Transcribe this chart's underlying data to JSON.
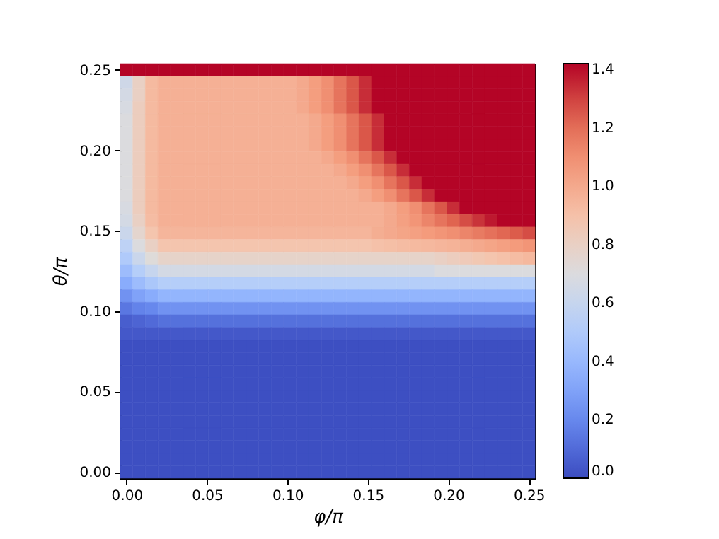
{
  "chart_data": {
    "type": "heatmap",
    "xlabel": "φ/π",
    "ylabel": "θ/π",
    "x": [
      0,
      0.0078,
      0.0156,
      0.0234,
      0.0312,
      0.0391,
      0.0469,
      0.0547,
      0.0625,
      0.0703,
      0.0781,
      0.0859,
      0.0938,
      0.1016,
      0.1094,
      0.1172,
      0.125,
      0.1328,
      0.1406,
      0.1484,
      0.1562,
      0.1641,
      0.1719,
      0.1797,
      0.1875,
      0.1953,
      0.2031,
      0.2109,
      0.2188,
      0.2266,
      0.2344,
      0.2422,
      0.25
    ],
    "y": [
      0.25,
      0.2422,
      0.2344,
      0.2266,
      0.2188,
      0.2109,
      0.2031,
      0.1953,
      0.1875,
      0.1797,
      0.1719,
      0.1641,
      0.1562,
      0.1484,
      0.1406,
      0.1328,
      0.125,
      0.1172,
      0.1094,
      0.1016,
      0.0938,
      0.0859,
      0.0781,
      0.0703,
      0.0625,
      0.0547,
      0.0469,
      0.0391,
      0.0312,
      0.0234,
      0.0156,
      0.0078,
      0
    ],
    "xlim": [
      -0.0039,
      0.2539
    ],
    "ylim": [
      -0.0039,
      0.2539
    ],
    "xticks": [
      {
        "value": 0,
        "label": "0.00"
      },
      0.05,
      {
        "value": 0.1,
        "label": "0.10"
      },
      0.15,
      {
        "value": 0.2,
        "label": "0.20"
      },
      0.25
    ],
    "yticks": [
      {
        "value": 0,
        "label": "0.00"
      },
      0.05,
      {
        "value": 0.1,
        "label": "0.10"
      },
      0.15,
      {
        "value": 0.2,
        "label": "0.20"
      },
      0.25
    ],
    "clim": [
      0,
      1.42
    ],
    "cticks": [
      {
        "value": 0,
        "label": "0.0"
      },
      0.2,
      0.4,
      0.6,
      0.8,
      {
        "value": 1,
        "label": "1.0"
      },
      1.2,
      1.4
    ],
    "cells": [
      [
        1.42,
        1.42,
        1.42,
        1.42,
        1.42,
        1.42,
        1.42,
        1.42,
        1.42,
        1.42,
        1.42,
        1.42,
        1.42,
        1.42,
        1.42,
        1.42,
        1.42,
        1.42,
        1.42,
        1.42,
        1.42,
        1.42,
        1.42,
        1.42,
        1.42,
        1.42,
        1.42,
        1.42,
        1.42,
        1.42,
        1.42,
        1.42,
        1.42
      ],
      [
        0.64,
        0.8,
        0.93,
        0.97,
        0.97,
        0.97,
        0.97,
        0.97,
        0.97,
        0.97,
        0.97,
        0.97,
        0.97,
        0.97,
        1.0,
        1.05,
        1.1,
        1.18,
        1.26,
        1.34,
        1.42,
        1.42,
        1.42,
        1.42,
        1.42,
        1.42,
        1.42,
        1.42,
        1.42,
        1.42,
        1.42,
        1.42,
        1.42
      ],
      [
        0.66,
        0.8,
        0.93,
        0.97,
        0.97,
        0.97,
        0.97,
        0.97,
        0.97,
        0.97,
        0.97,
        0.97,
        0.97,
        0.97,
        1.0,
        1.05,
        1.1,
        1.18,
        1.26,
        1.34,
        1.42,
        1.42,
        1.42,
        1.42,
        1.42,
        1.42,
        1.42,
        1.42,
        1.42,
        1.42,
        1.42,
        1.42,
        1.42
      ],
      [
        0.68,
        0.82,
        0.93,
        0.97,
        0.97,
        0.97,
        0.97,
        0.97,
        0.97,
        0.97,
        0.97,
        0.97,
        0.97,
        0.97,
        1.0,
        1.05,
        1.1,
        1.18,
        1.26,
        1.34,
        1.42,
        1.42,
        1.42,
        1.42,
        1.42,
        1.42,
        1.42,
        1.42,
        1.42,
        1.42,
        1.42,
        1.42,
        1.42
      ],
      [
        0.7,
        0.82,
        0.93,
        0.97,
        0.97,
        0.97,
        0.97,
        0.97,
        0.97,
        0.97,
        0.97,
        0.97,
        0.97,
        0.97,
        0.97,
        1.0,
        1.05,
        1.1,
        1.18,
        1.26,
        1.34,
        1.42,
        1.42,
        1.42,
        1.42,
        1.42,
        1.42,
        1.42,
        1.42,
        1.42,
        1.42,
        1.42,
        1.42
      ],
      [
        0.7,
        0.82,
        0.93,
        0.97,
        0.97,
        0.97,
        0.97,
        0.97,
        0.97,
        0.97,
        0.97,
        0.97,
        0.97,
        0.97,
        0.97,
        1.0,
        1.05,
        1.1,
        1.18,
        1.26,
        1.34,
        1.42,
        1.42,
        1.42,
        1.42,
        1.42,
        1.42,
        1.42,
        1.42,
        1.42,
        1.42,
        1.42,
        1.42
      ],
      [
        0.7,
        0.82,
        0.93,
        0.97,
        0.97,
        0.97,
        0.97,
        0.97,
        0.97,
        0.97,
        0.97,
        0.97,
        0.97,
        0.97,
        0.97,
        1.0,
        1.05,
        1.1,
        1.18,
        1.26,
        1.34,
        1.42,
        1.42,
        1.42,
        1.42,
        1.42,
        1.42,
        1.42,
        1.42,
        1.42,
        1.42,
        1.42,
        1.42
      ],
      [
        0.7,
        0.82,
        0.93,
        0.97,
        0.97,
        0.97,
        0.97,
        0.97,
        0.97,
        0.97,
        0.97,
        0.97,
        0.97,
        0.97,
        0.97,
        0.97,
        1.0,
        1.05,
        1.1,
        1.18,
        1.26,
        1.34,
        1.42,
        1.42,
        1.42,
        1.42,
        1.42,
        1.42,
        1.42,
        1.42,
        1.42,
        1.42,
        1.42
      ],
      [
        0.7,
        0.82,
        0.93,
        0.97,
        0.97,
        0.97,
        0.97,
        0.97,
        0.97,
        0.97,
        0.97,
        0.97,
        0.97,
        0.97,
        0.97,
        0.97,
        0.97,
        1.0,
        1.05,
        1.1,
        1.18,
        1.26,
        1.34,
        1.42,
        1.42,
        1.42,
        1.42,
        1.42,
        1.42,
        1.42,
        1.42,
        1.42,
        1.42
      ],
      [
        0.7,
        0.82,
        0.93,
        0.97,
        0.97,
        0.97,
        0.97,
        0.97,
        0.97,
        0.97,
        0.97,
        0.97,
        0.97,
        0.97,
        0.97,
        0.97,
        0.97,
        0.97,
        1.0,
        1.05,
        1.1,
        1.18,
        1.26,
        1.34,
        1.42,
        1.42,
        1.42,
        1.42,
        1.42,
        1.42,
        1.42,
        1.42,
        1.42
      ],
      [
        0.7,
        0.82,
        0.93,
        0.97,
        0.97,
        0.97,
        0.97,
        0.97,
        0.97,
        0.97,
        0.97,
        0.97,
        0.97,
        0.97,
        0.97,
        0.97,
        0.97,
        0.97,
        0.97,
        1.0,
        1.05,
        1.1,
        1.18,
        1.26,
        1.34,
        1.42,
        1.42,
        1.42,
        1.42,
        1.42,
        1.42,
        1.42,
        1.42
      ],
      [
        0.68,
        0.82,
        0.93,
        0.97,
        0.97,
        0.97,
        0.97,
        0.97,
        0.97,
        0.97,
        0.97,
        0.97,
        0.97,
        0.97,
        0.97,
        0.97,
        0.97,
        0.97,
        0.97,
        0.97,
        0.97,
        1.0,
        1.05,
        1.1,
        1.18,
        1.26,
        1.34,
        1.42,
        1.42,
        1.42,
        1.42,
        1.42,
        1.42
      ],
      [
        0.66,
        0.8,
        0.92,
        0.97,
        0.97,
        0.97,
        0.97,
        0.97,
        0.97,
        0.97,
        0.97,
        0.97,
        0.97,
        0.97,
        0.97,
        0.97,
        0.97,
        0.97,
        0.97,
        0.97,
        0.97,
        1.0,
        1.04,
        1.08,
        1.13,
        1.18,
        1.23,
        1.28,
        1.33,
        1.38,
        1.42,
        1.42,
        1.42
      ],
      [
        0.62,
        0.76,
        0.88,
        0.95,
        0.95,
        0.95,
        0.95,
        0.95,
        0.95,
        0.95,
        0.95,
        0.95,
        0.95,
        0.95,
        0.95,
        0.95,
        0.95,
        0.95,
        0.95,
        0.95,
        0.98,
        1.0,
        1.02,
        1.04,
        1.06,
        1.08,
        1.1,
        1.13,
        1.16,
        1.19,
        1.22,
        1.25,
        1.28
      ],
      [
        0.56,
        0.7,
        0.8,
        0.88,
        0.88,
        0.88,
        0.88,
        0.88,
        0.88,
        0.88,
        0.88,
        0.88,
        0.88,
        0.88,
        0.88,
        0.88,
        0.88,
        0.88,
        0.88,
        0.88,
        0.9,
        0.91,
        0.92,
        0.93,
        0.94,
        0.95,
        0.96,
        0.98,
        1.0,
        1.02,
        1.04,
        1.06,
        1.08
      ],
      [
        0.5,
        0.62,
        0.72,
        0.78,
        0.78,
        0.78,
        0.78,
        0.78,
        0.78,
        0.78,
        0.78,
        0.78,
        0.78,
        0.78,
        0.78,
        0.78,
        0.78,
        0.78,
        0.78,
        0.78,
        0.78,
        0.78,
        0.78,
        0.78,
        0.78,
        0.8,
        0.82,
        0.84,
        0.86,
        0.88,
        0.9,
        0.92,
        0.94
      ],
      [
        0.42,
        0.52,
        0.6,
        0.66,
        0.66,
        0.66,
        0.66,
        0.66,
        0.66,
        0.66,
        0.66,
        0.66,
        0.66,
        0.66,
        0.66,
        0.66,
        0.66,
        0.66,
        0.66,
        0.66,
        0.66,
        0.66,
        0.66,
        0.66,
        0.66,
        0.7,
        0.7,
        0.7,
        0.7,
        0.7,
        0.7,
        0.7,
        0.7
      ],
      [
        0.34,
        0.42,
        0.48,
        0.52,
        0.52,
        0.52,
        0.52,
        0.52,
        0.52,
        0.52,
        0.52,
        0.52,
        0.52,
        0.52,
        0.52,
        0.52,
        0.52,
        0.52,
        0.52,
        0.52,
        0.52,
        0.52,
        0.52,
        0.52,
        0.52,
        0.52,
        0.52,
        0.52,
        0.52,
        0.52,
        0.52,
        0.52,
        0.52
      ],
      [
        0.24,
        0.3,
        0.34,
        0.38,
        0.38,
        0.38,
        0.38,
        0.38,
        0.38,
        0.38,
        0.38,
        0.38,
        0.38,
        0.38,
        0.38,
        0.38,
        0.38,
        0.38,
        0.38,
        0.38,
        0.38,
        0.38,
        0.38,
        0.38,
        0.38,
        0.38,
        0.38,
        0.38,
        0.38,
        0.38,
        0.38,
        0.38,
        0.38
      ],
      [
        0.14,
        0.18,
        0.2,
        0.24,
        0.24,
        0.24,
        0.24,
        0.24,
        0.24,
        0.24,
        0.24,
        0.24,
        0.24,
        0.24,
        0.24,
        0.24,
        0.24,
        0.24,
        0.24,
        0.24,
        0.24,
        0.24,
        0.24,
        0.24,
        0.24,
        0.24,
        0.24,
        0.24,
        0.24,
        0.24,
        0.24,
        0.24,
        0.24
      ],
      [
        0.06,
        0.08,
        0.1,
        0.12,
        0.12,
        0.12,
        0.12,
        0.12,
        0.12,
        0.12,
        0.12,
        0.12,
        0.12,
        0.12,
        0.12,
        0.12,
        0.12,
        0.12,
        0.12,
        0.12,
        0.12,
        0.12,
        0.12,
        0.12,
        0.12,
        0.12,
        0.12,
        0.12,
        0.12,
        0.12,
        0.12,
        0.12,
        0.12
      ],
      [
        0.04,
        0.04,
        0.04,
        0.04,
        0.04,
        0.04,
        0.04,
        0.04,
        0.04,
        0.04,
        0.04,
        0.04,
        0.04,
        0.04,
        0.04,
        0.04,
        0.04,
        0.04,
        0.04,
        0.04,
        0.04,
        0.04,
        0.04,
        0.04,
        0.04,
        0.04,
        0.04,
        0.04,
        0.04,
        0.04,
        0.04,
        0.04,
        0.04
      ],
      [
        0.01,
        0.01,
        0.01,
        0.01,
        0.01,
        0.01,
        0.01,
        0.01,
        0.01,
        0.01,
        0.01,
        0.01,
        0.01,
        0.01,
        0.01,
        0.01,
        0.01,
        0.01,
        0.01,
        0.01,
        0.01,
        0.01,
        0.01,
        0.01,
        0.01,
        0.01,
        0.01,
        0.01,
        0.01,
        0.01,
        0.01,
        0.01,
        0.01
      ],
      [
        0.01,
        0.01,
        0.01,
        0.01,
        0.01,
        0.01,
        0.01,
        0.01,
        0.01,
        0.01,
        0.01,
        0.01,
        0.01,
        0.01,
        0.01,
        0.01,
        0.01,
        0.01,
        0.01,
        0.01,
        0.01,
        0.01,
        0.01,
        0.01,
        0.01,
        0.01,
        0.01,
        0.01,
        0.01,
        0.01,
        0.01,
        0.01,
        0.01
      ],
      [
        0.01,
        0.01,
        0.01,
        0.01,
        0.01,
        0.01,
        0.01,
        0.01,
        0.01,
        0.01,
        0.01,
        0.01,
        0.01,
        0.01,
        0.01,
        0.01,
        0.01,
        0.01,
        0.01,
        0.01,
        0.01,
        0.01,
        0.01,
        0.01,
        0.01,
        0.01,
        0.01,
        0.01,
        0.01,
        0.01,
        0.01,
        0.01,
        0.01
      ],
      [
        0.01,
        0.01,
        0.01,
        0.01,
        0.01,
        0.01,
        0.01,
        0.01,
        0.01,
        0.01,
        0.01,
        0.01,
        0.01,
        0.01,
        0.01,
        0.01,
        0.01,
        0.01,
        0.01,
        0.01,
        0.01,
        0.01,
        0.01,
        0.01,
        0.01,
        0.01,
        0.01,
        0.01,
        0.01,
        0.01,
        0.01,
        0.01,
        0.01
      ],
      [
        0.01,
        0.01,
        0.01,
        0.01,
        0.01,
        0.01,
        0.01,
        0.01,
        0.01,
        0.01,
        0.01,
        0.01,
        0.01,
        0.01,
        0.01,
        0.01,
        0.01,
        0.01,
        0.01,
        0.01,
        0.01,
        0.01,
        0.01,
        0.01,
        0.01,
        0.01,
        0.01,
        0.01,
        0.01,
        0.01,
        0.01,
        0.01,
        0.01
      ],
      [
        0.01,
        0.01,
        0.01,
        0.01,
        0.01,
        0.01,
        0.01,
        0.01,
        0.01,
        0.01,
        0.01,
        0.01,
        0.01,
        0.01,
        0.01,
        0.01,
        0.01,
        0.01,
        0.01,
        0.01,
        0.01,
        0.01,
        0.01,
        0.01,
        0.01,
        0.01,
        0.01,
        0.01,
        0.01,
        0.01,
        0.01,
        0.01,
        0.01
      ],
      [
        0.01,
        0.01,
        0.01,
        0.01,
        0.01,
        0.01,
        0.01,
        0.01,
        0.01,
        0.01,
        0.01,
        0.01,
        0.01,
        0.01,
        0.01,
        0.01,
        0.01,
        0.01,
        0.01,
        0.01,
        0.01,
        0.01,
        0.01,
        0.01,
        0.01,
        0.01,
        0.01,
        0.01,
        0.01,
        0.01,
        0.01,
        0.01,
        0.01
      ],
      [
        0.01,
        0.01,
        0.01,
        0.01,
        0.01,
        0.01,
        0.01,
        0.01,
        0.01,
        0.01,
        0.01,
        0.01,
        0.01,
        0.01,
        0.01,
        0.01,
        0.01,
        0.01,
        0.01,
        0.01,
        0.01,
        0.01,
        0.01,
        0.01,
        0.01,
        0.01,
        0.01,
        0.01,
        0.01,
        0.01,
        0.01,
        0.01,
        0.01
      ],
      [
        0.01,
        0.01,
        0.01,
        0.01,
        0.01,
        0.01,
        0.01,
        0.01,
        0.01,
        0.01,
        0.01,
        0.01,
        0.01,
        0.01,
        0.01,
        0.01,
        0.01,
        0.01,
        0.01,
        0.01,
        0.01,
        0.01,
        0.01,
        0.01,
        0.01,
        0.01,
        0.01,
        0.01,
        0.01,
        0.01,
        0.01,
        0.01,
        0.01
      ],
      [
        0.01,
        0.01,
        0.01,
        0.01,
        0.01,
        0.01,
        0.01,
        0.01,
        0.01,
        0.01,
        0.01,
        0.01,
        0.01,
        0.01,
        0.01,
        0.01,
        0.01,
        0.01,
        0.01,
        0.01,
        0.01,
        0.01,
        0.01,
        0.01,
        0.01,
        0.01,
        0.01,
        0.01,
        0.01,
        0.01,
        0.01,
        0.01,
        0.01
      ],
      [
        0.01,
        0.01,
        0.01,
        0.01,
        0.01,
        0.01,
        0.01,
        0.01,
        0.01,
        0.01,
        0.01,
        0.01,
        0.01,
        0.01,
        0.01,
        0.01,
        0.01,
        0.01,
        0.01,
        0.01,
        0.01,
        0.01,
        0.01,
        0.01,
        0.01,
        0.01,
        0.01,
        0.01,
        0.01,
        0.01,
        0.01,
        0.01,
        0.01
      ]
    ]
  }
}
